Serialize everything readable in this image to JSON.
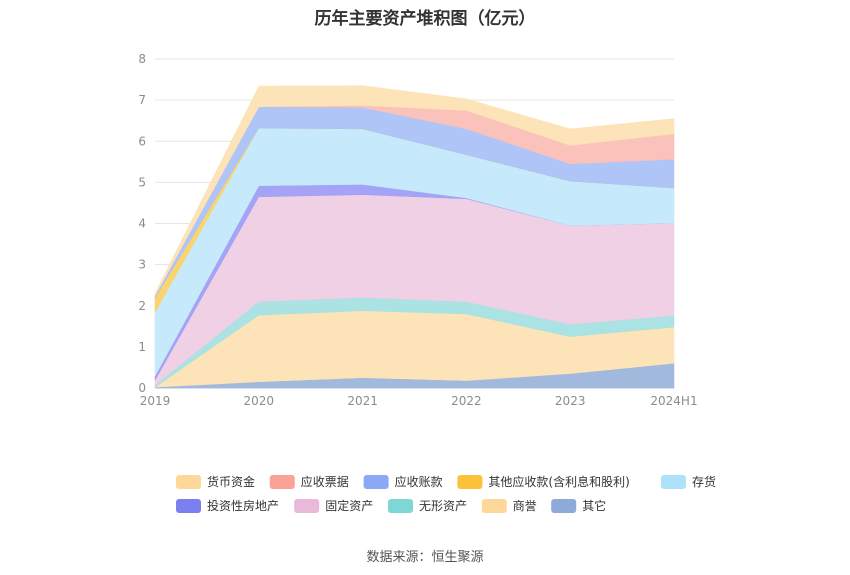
{
  "chart_data": {
    "type": "area",
    "title": "历年主要资产堆积图（亿元）",
    "source": "数据来源：恒生聚源",
    "x": [
      "2019",
      "2020",
      "2021",
      "2022",
      "2023",
      "2024H1"
    ],
    "ylim": [
      0,
      8
    ],
    "yticks": [
      "0",
      "1",
      "2",
      "3",
      "4",
      "5",
      "6",
      "7",
      "8"
    ],
    "grid": true,
    "legend_position": "bottom",
    "series": [
      {
        "name": "其它",
        "color": "#9db5dc",
        "values": [
          0.02,
          0.15,
          0.25,
          0.18,
          0.35,
          0.6
        ]
      },
      {
        "name": "商誉",
        "color": "#fde3b4",
        "values": [
          0.0,
          1.62,
          1.63,
          1.62,
          0.9,
          0.88
        ]
      },
      {
        "name": "无形资产",
        "color": "#a6e0e1",
        "values": [
          0.05,
          0.33,
          0.32,
          0.3,
          0.3,
          0.28
        ]
      },
      {
        "name": "固定资产",
        "color": "#efcde4",
        "values": [
          0.12,
          2.55,
          2.5,
          2.5,
          2.4,
          2.25
        ]
      },
      {
        "name": "投资性房地产",
        "color": "#9f9ef5",
        "values": [
          0.1,
          0.27,
          0.25,
          0.02,
          0.0,
          0.0
        ]
      },
      {
        "name": "存货",
        "color": "#c3e9fb",
        "values": [
          1.55,
          1.4,
          1.35,
          1.05,
          1.08,
          0.85
        ]
      },
      {
        "name": "其他应收款(含利息和股利)",
        "color": "#fcd265",
        "values": [
          0.35,
          0.0,
          0.0,
          0.0,
          0.0,
          0.0
        ]
      },
      {
        "name": "应收账款",
        "color": "#abc2f8",
        "values": [
          0.05,
          0.52,
          0.52,
          0.63,
          0.42,
          0.7
        ]
      },
      {
        "name": "应收票据",
        "color": "#fbbfb8",
        "values": [
          0.0,
          0.0,
          0.05,
          0.45,
          0.45,
          0.62
        ]
      },
      {
        "name": "货币资金",
        "color": "#fde3b4",
        "values": [
          0.06,
          0.5,
          0.48,
          0.28,
          0.4,
          0.37
        ]
      }
    ],
    "legend": [
      {
        "name": "货币资金",
        "color": "#fdd89a"
      },
      {
        "name": "应收票据",
        "color": "#f9a295"
      },
      {
        "name": "应收账款",
        "color": "#8aa8f5"
      },
      {
        "name": "其他应收款(含利息和股利)",
        "color": "#fcc23a"
      },
      {
        "name": "存货",
        "color": "#aee2fb"
      },
      {
        "name": "投资性房地产",
        "color": "#7b7ff0"
      },
      {
        "name": "固定资产",
        "color": "#e8b9d9"
      },
      {
        "name": "无形资产",
        "color": "#7fd6d6"
      },
      {
        "name": "商誉",
        "color": "#fdd89a"
      },
      {
        "name": "其它",
        "color": "#8eaad8"
      }
    ]
  }
}
